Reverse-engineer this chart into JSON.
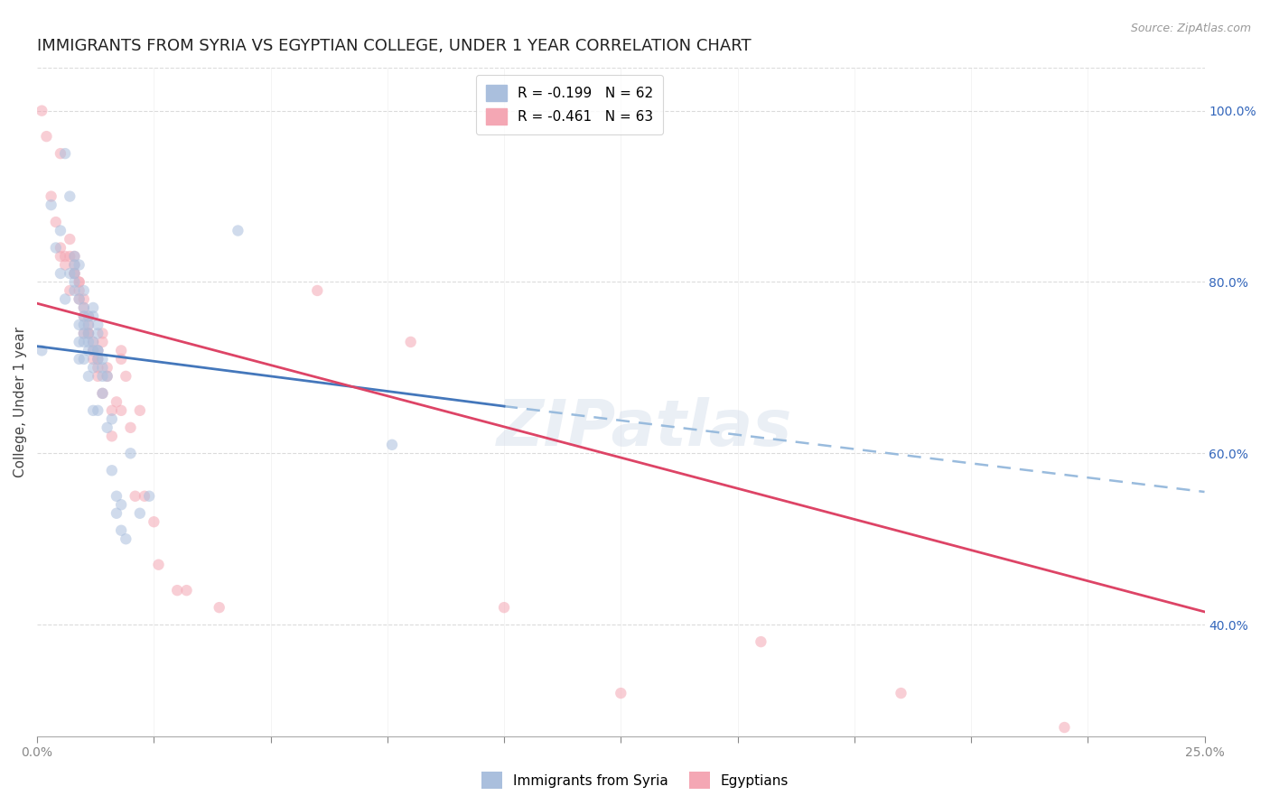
{
  "title": "IMMIGRANTS FROM SYRIA VS EGYPTIAN COLLEGE, UNDER 1 YEAR CORRELATION CHART",
  "source": "Source: ZipAtlas.com",
  "ylabel": "College, Under 1 year",
  "xlim": [
    0.0,
    0.25
  ],
  "ylim": [
    0.27,
    1.05
  ],
  "xticks": [
    0.0,
    0.025,
    0.05,
    0.075,
    0.1,
    0.125,
    0.15,
    0.175,
    0.2,
    0.225,
    0.25
  ],
  "xtick_labels": [
    "0.0%",
    "",
    "",
    "",
    "",
    "",
    "",
    "",
    "",
    "",
    "25.0%"
  ],
  "yticks_right": [
    1.0,
    0.8,
    0.6,
    0.4
  ],
  "ytick_labels_right": [
    "100.0%",
    "80.0%",
    "60.0%",
    "40.0%"
  ],
  "legend_entries": [
    {
      "label": "R = -0.199   N = 62",
      "color": "#aabfdd"
    },
    {
      "label": "R = -0.461   N = 63",
      "color": "#f4a7b4"
    }
  ],
  "watermark": "ZIPatlas",
  "syria_scatter": [
    [
      0.001,
      0.72
    ],
    [
      0.003,
      0.89
    ],
    [
      0.004,
      0.84
    ],
    [
      0.005,
      0.81
    ],
    [
      0.005,
      0.86
    ],
    [
      0.006,
      0.78
    ],
    [
      0.006,
      0.95
    ],
    [
      0.007,
      0.9
    ],
    [
      0.007,
      0.81
    ],
    [
      0.008,
      0.81
    ],
    [
      0.008,
      0.8
    ],
    [
      0.008,
      0.79
    ],
    [
      0.008,
      0.83
    ],
    [
      0.008,
      0.82
    ],
    [
      0.009,
      0.75
    ],
    [
      0.009,
      0.73
    ],
    [
      0.009,
      0.71
    ],
    [
      0.009,
      0.82
    ],
    [
      0.009,
      0.78
    ],
    [
      0.01,
      0.77
    ],
    [
      0.01,
      0.74
    ],
    [
      0.01,
      0.73
    ],
    [
      0.01,
      0.71
    ],
    [
      0.01,
      0.79
    ],
    [
      0.01,
      0.76
    ],
    [
      0.01,
      0.75
    ],
    [
      0.011,
      0.74
    ],
    [
      0.011,
      0.73
    ],
    [
      0.011,
      0.72
    ],
    [
      0.011,
      0.69
    ],
    [
      0.011,
      0.76
    ],
    [
      0.011,
      0.75
    ],
    [
      0.012,
      0.73
    ],
    [
      0.012,
      0.72
    ],
    [
      0.012,
      0.7
    ],
    [
      0.012,
      0.65
    ],
    [
      0.012,
      0.77
    ],
    [
      0.012,
      0.76
    ],
    [
      0.013,
      0.74
    ],
    [
      0.013,
      0.72
    ],
    [
      0.013,
      0.71
    ],
    [
      0.013,
      0.65
    ],
    [
      0.013,
      0.75
    ],
    [
      0.013,
      0.72
    ],
    [
      0.014,
      0.7
    ],
    [
      0.014,
      0.67
    ],
    [
      0.014,
      0.71
    ],
    [
      0.014,
      0.69
    ],
    [
      0.015,
      0.63
    ],
    [
      0.015,
      0.69
    ],
    [
      0.016,
      0.64
    ],
    [
      0.016,
      0.58
    ],
    [
      0.017,
      0.53
    ],
    [
      0.017,
      0.55
    ],
    [
      0.018,
      0.54
    ],
    [
      0.018,
      0.51
    ],
    [
      0.019,
      0.5
    ],
    [
      0.02,
      0.6
    ],
    [
      0.022,
      0.53
    ],
    [
      0.024,
      0.55
    ],
    [
      0.043,
      0.86
    ],
    [
      0.076,
      0.61
    ]
  ],
  "egypt_scatter": [
    [
      0.001,
      1.0
    ],
    [
      0.002,
      0.97
    ],
    [
      0.003,
      0.9
    ],
    [
      0.004,
      0.87
    ],
    [
      0.005,
      0.83
    ],
    [
      0.005,
      0.95
    ],
    [
      0.005,
      0.84
    ],
    [
      0.006,
      0.83
    ],
    [
      0.006,
      0.82
    ],
    [
      0.007,
      0.79
    ],
    [
      0.007,
      0.85
    ],
    [
      0.007,
      0.83
    ],
    [
      0.008,
      0.82
    ],
    [
      0.008,
      0.81
    ],
    [
      0.008,
      0.83
    ],
    [
      0.008,
      0.81
    ],
    [
      0.009,
      0.8
    ],
    [
      0.009,
      0.78
    ],
    [
      0.009,
      0.8
    ],
    [
      0.009,
      0.79
    ],
    [
      0.01,
      0.76
    ],
    [
      0.01,
      0.74
    ],
    [
      0.01,
      0.78
    ],
    [
      0.01,
      0.77
    ],
    [
      0.011,
      0.76
    ],
    [
      0.011,
      0.75
    ],
    [
      0.011,
      0.74
    ],
    [
      0.011,
      0.74
    ],
    [
      0.012,
      0.73
    ],
    [
      0.012,
      0.72
    ],
    [
      0.012,
      0.71
    ],
    [
      0.013,
      0.7
    ],
    [
      0.013,
      0.72
    ],
    [
      0.013,
      0.71
    ],
    [
      0.013,
      0.69
    ],
    [
      0.014,
      0.67
    ],
    [
      0.014,
      0.74
    ],
    [
      0.014,
      0.73
    ],
    [
      0.015,
      0.7
    ],
    [
      0.015,
      0.69
    ],
    [
      0.016,
      0.65
    ],
    [
      0.016,
      0.62
    ],
    [
      0.017,
      0.66
    ],
    [
      0.018,
      0.65
    ],
    [
      0.018,
      0.72
    ],
    [
      0.018,
      0.71
    ],
    [
      0.019,
      0.69
    ],
    [
      0.02,
      0.63
    ],
    [
      0.021,
      0.55
    ],
    [
      0.022,
      0.65
    ],
    [
      0.023,
      0.55
    ],
    [
      0.025,
      0.52
    ],
    [
      0.026,
      0.47
    ],
    [
      0.03,
      0.44
    ],
    [
      0.032,
      0.44
    ],
    [
      0.039,
      0.42
    ],
    [
      0.06,
      0.79
    ],
    [
      0.08,
      0.73
    ],
    [
      0.1,
      0.42
    ],
    [
      0.125,
      0.32
    ],
    [
      0.155,
      0.38
    ],
    [
      0.185,
      0.32
    ],
    [
      0.22,
      0.28
    ]
  ],
  "syria_line_solid": {
    "x": [
      0.0,
      0.1
    ],
    "y": [
      0.725,
      0.655
    ]
  },
  "syria_line_dashed": {
    "x": [
      0.1,
      0.25
    ],
    "y": [
      0.655,
      0.555
    ]
  },
  "egypt_line": {
    "x": [
      0.0,
      0.25
    ],
    "y": [
      0.775,
      0.415
    ]
  },
  "blue_scatter_color": "#aabfdd",
  "pink_scatter_color": "#f4a7b4",
  "blue_line_color": "#4477bb",
  "pink_line_color": "#dd4466",
  "dashed_line_color": "#99bbdd",
  "title_fontsize": 13,
  "axis_label_fontsize": 11,
  "tick_fontsize": 10,
  "legend_fontsize": 11,
  "scatter_size": 80,
  "scatter_alpha": 0.55,
  "background_color": "#ffffff",
  "grid_color": "#cccccc",
  "grid_alpha": 0.7
}
